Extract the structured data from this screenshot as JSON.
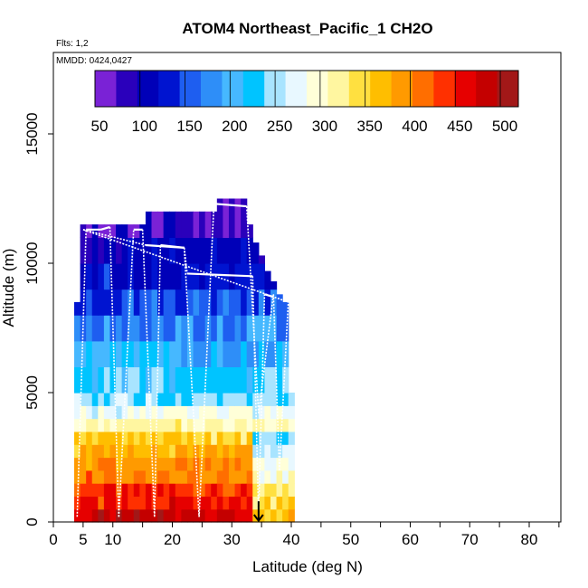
{
  "chart_data": {
    "type": "heatmap",
    "title": "ATOM4 Northeast_Pacific_1 CH2O",
    "flights_note": "Flts: 1,2",
    "dates_note": "MMDD: 0424,0427",
    "xlabel": "Latitude (deg N)",
    "ylabel": "Altitude (m)",
    "xlim": [
      0,
      85
    ],
    "ylim": [
      0,
      17500
    ],
    "x_ticks": [
      0,
      5,
      10,
      20,
      30,
      40,
      50,
      60,
      70,
      80
    ],
    "y_ticks": [
      0,
      5000,
      10000,
      15000
    ],
    "colorbar": {
      "range": [
        40,
        510
      ],
      "ticks": [
        50,
        100,
        150,
        200,
        250,
        300,
        350,
        400,
        450,
        500
      ],
      "colors": [
        "#7a22d6",
        "#2a00bb",
        "#0000b8",
        "#0014d0",
        "#1e5ef0",
        "#2e8ef8",
        "#46b8ff",
        "#00c4ff",
        "#a8e4ff",
        "#e8f8ff",
        "#ffffd8",
        "#fff6a0",
        "#ffe040",
        "#ffbe00",
        "#ff9a00",
        "#ff6e00",
        "#ff3000",
        "#e60000",
        "#c40000",
        "#a21818"
      ]
    },
    "altitude_profile": [
      {
        "alt_range": [
          0,
          500
        ],
        "value": 470
      },
      {
        "alt_range": [
          500,
          1000
        ],
        "value": 440
      },
      {
        "alt_range": [
          1000,
          1500
        ],
        "value": 430
      },
      {
        "alt_range": [
          1500,
          2000
        ],
        "value": 400
      },
      {
        "alt_range": [
          2000,
          2500
        ],
        "value": 390
      },
      {
        "alt_range": [
          2500,
          3000
        ],
        "value": 360
      },
      {
        "alt_range": [
          3000,
          3500
        ],
        "value": 340
      },
      {
        "alt_range": [
          3500,
          4000
        ],
        "value": 300
      },
      {
        "alt_range": [
          4000,
          4500
        ],
        "value": 270
      },
      {
        "alt_range": [
          4500,
          5000
        ],
        "value": 235
      },
      {
        "alt_range": [
          5000,
          6000
        ],
        "value": 215
      },
      {
        "alt_range": [
          6000,
          7000
        ],
        "value": 190
      },
      {
        "alt_range": [
          7000,
          8000
        ],
        "value": 170
      },
      {
        "alt_range": [
          8000,
          9000
        ],
        "value": 145
      },
      {
        "alt_range": [
          9000,
          10000
        ],
        "value": 115
      },
      {
        "alt_range": [
          10000,
          11000
        ],
        "value": 95
      },
      {
        "alt_range": [
          11000,
          12500
        ],
        "value": 70
      }
    ],
    "coverage": [
      {
        "lat_range": [
          3.5,
          4.5
        ],
        "top": 8500
      },
      {
        "lat_range": [
          4.5,
          15.5
        ],
        "top": 11500
      },
      {
        "lat_range": [
          15.5,
          27.5
        ],
        "top": 12000
      },
      {
        "lat_range": [
          27.5,
          32.5
        ],
        "top": 12500
      },
      {
        "lat_range": [
          32.5,
          33.5
        ],
        "top": 11500
      },
      {
        "lat_range": [
          33.5,
          34.5
        ],
        "top": 10800
      },
      {
        "lat_range": [
          34.5,
          35.5
        ],
        "top": 10300
      },
      {
        "lat_range": [
          35.5,
          36.5
        ],
        "top": 9700
      },
      {
        "lat_range": [
          36.5,
          37.5
        ],
        "top": 9300
      },
      {
        "lat_range": [
          37.5,
          38.5
        ],
        "top": 8800
      },
      {
        "lat_range": [
          38.5,
          39.5
        ],
        "top": 8500
      },
      {
        "lat_range": [
          39.5,
          40.5
        ],
        "top": 5000
      }
    ],
    "flight_track": [
      {
        "lat": 4,
        "alt": 200
      },
      {
        "lat": 5.5,
        "alt": 11300
      },
      {
        "lat": 8,
        "alt": 11300
      },
      {
        "lat": 9.5,
        "alt": 11400
      },
      {
        "lat": 11,
        "alt": 200
      },
      {
        "lat": 13.5,
        "alt": 11300
      },
      {
        "lat": 15,
        "alt": 11300
      },
      {
        "lat": 17,
        "alt": 200
      },
      {
        "lat": 18,
        "alt": 10700
      },
      {
        "lat": 22,
        "alt": 10600
      },
      {
        "lat": 24.5,
        "alt": 200
      },
      {
        "lat": 27,
        "alt": 12300
      },
      {
        "lat": 32.5,
        "alt": 12200
      },
      {
        "lat": 34.5,
        "alt": 4200
      },
      {
        "lat": 37,
        "alt": 8800
      },
      {
        "lat": 38,
        "alt": 2000
      },
      {
        "lat": 39.5,
        "alt": 8500
      },
      {
        "lat": 5,
        "alt": 11300
      },
      {
        "lat": 15.5,
        "alt": 10700
      },
      {
        "lat": 22,
        "alt": 10600
      },
      {
        "lat": 22.5,
        "alt": 9600
      },
      {
        "lat": 33.5,
        "alt": 9500
      },
      {
        "lat": 34.5,
        "alt": 300
      },
      {
        "lat": 35.5,
        "alt": 8800
      },
      {
        "lat": 37,
        "alt": 8700
      }
    ],
    "marker": {
      "lat": 34.5,
      "alt": 700
    }
  }
}
